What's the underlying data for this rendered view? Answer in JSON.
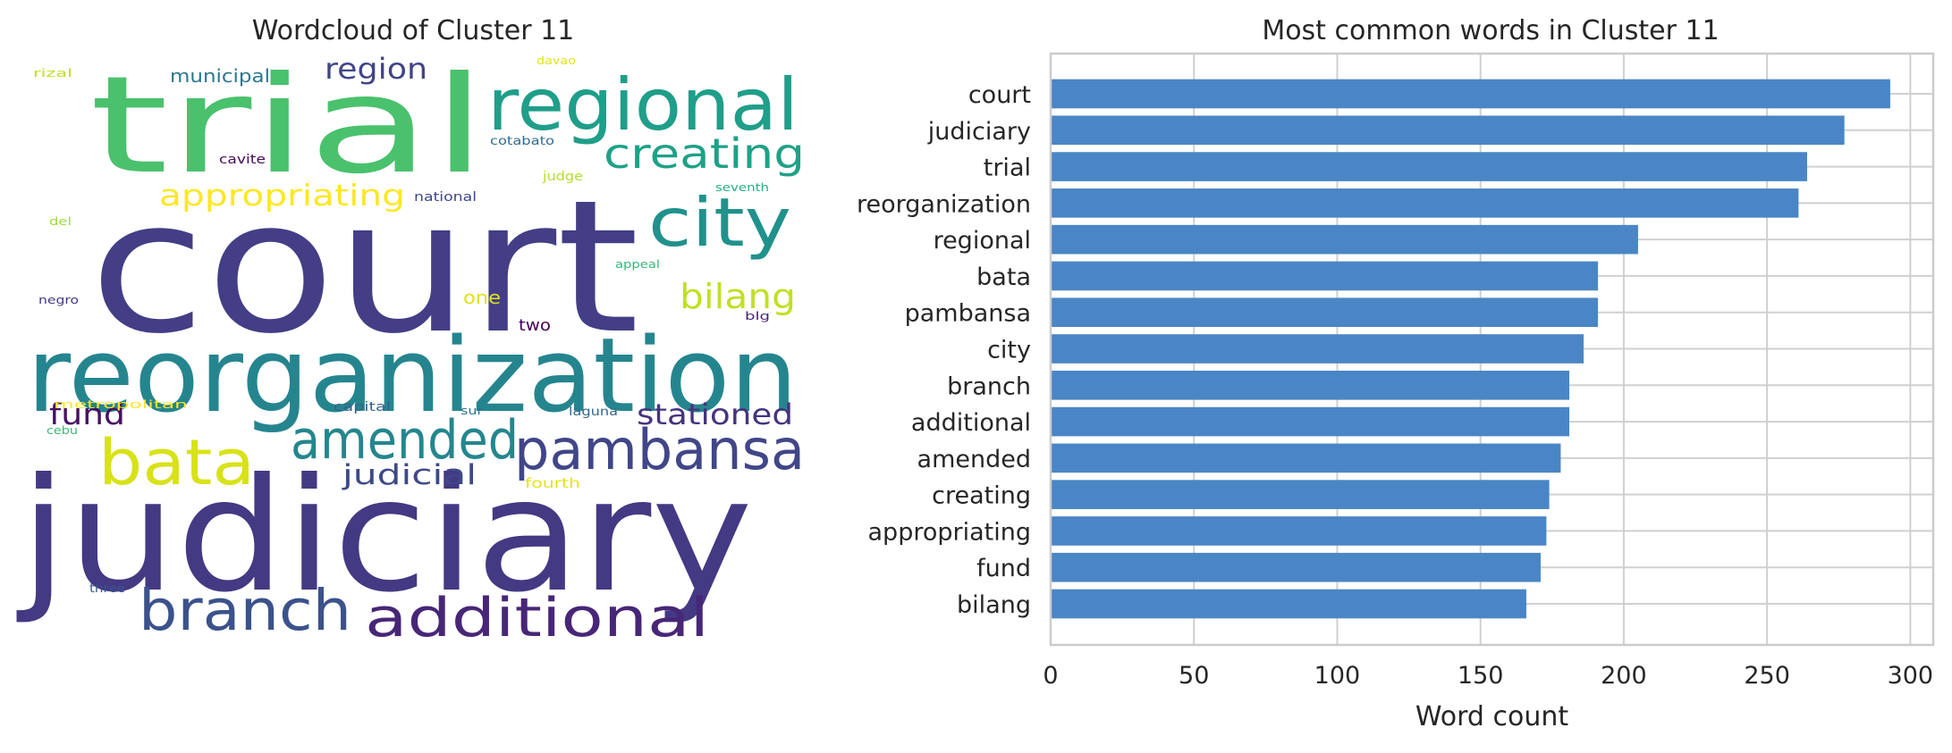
{
  "chart_data": [
    {
      "type": "wordcloud",
      "title": "Wordcloud of Cluster 11",
      "words": [
        {
          "text": "court",
          "color": "#433e85"
        },
        {
          "text": "judiciary",
          "color": "#443983"
        },
        {
          "text": "trial",
          "color": "#4ac16d"
        },
        {
          "text": "reorganization",
          "color": "#25858e"
        },
        {
          "text": "regional",
          "color": "#1f9e89"
        },
        {
          "text": "city",
          "color": "#21918c"
        },
        {
          "text": "pambansa",
          "color": "#404688"
        },
        {
          "text": "amended",
          "color": "#24868e"
        },
        {
          "text": "bata",
          "color": "#d8e219"
        },
        {
          "text": "branch",
          "color": "#3b528b"
        },
        {
          "text": "additional",
          "color": "#482677"
        },
        {
          "text": "creating",
          "color": "#1fa187"
        },
        {
          "text": "bilang",
          "color": "#c2df23"
        },
        {
          "text": "appropriating",
          "color": "#fde725"
        },
        {
          "text": "stationed",
          "color": "#46337e"
        },
        {
          "text": "region",
          "color": "#414487"
        },
        {
          "text": "judicial",
          "color": "#3e4989"
        },
        {
          "text": "fund",
          "color": "#471063"
        },
        {
          "text": "municipal",
          "color": "#2a788e"
        },
        {
          "text": "one",
          "color": "#dfe318"
        },
        {
          "text": "two",
          "color": "#440154"
        },
        {
          "text": "cavite",
          "color": "#46085c"
        },
        {
          "text": "cotabato",
          "color": "#306a8e"
        },
        {
          "text": "judge",
          "color": "#b5de2b"
        },
        {
          "text": "national",
          "color": "#3f4788"
        },
        {
          "text": "seventh",
          "color": "#29af7f"
        },
        {
          "text": "rizal",
          "color": "#bddf26"
        },
        {
          "text": "davao",
          "color": "#e5e419"
        },
        {
          "text": "del",
          "color": "#a0da39"
        },
        {
          "text": "appeal",
          "color": "#35b779"
        },
        {
          "text": "negro",
          "color": "#453781"
        },
        {
          "text": "blg",
          "color": "#481f70"
        },
        {
          "text": "metropolitan",
          "color": "#fde725"
        },
        {
          "text": "capital",
          "color": "#33638d"
        },
        {
          "text": "sur",
          "color": "#2e6f8e"
        },
        {
          "text": "laguna",
          "color": "#31688e"
        },
        {
          "text": "cebu",
          "color": "#3bbb75"
        },
        {
          "text": "fourth",
          "color": "#e2e418"
        },
        {
          "text": "three",
          "color": "#3a548c"
        }
      ]
    },
    {
      "type": "bar",
      "orientation": "horizontal",
      "title": "Most common words in Cluster 11",
      "xlabel": "Word count",
      "ylabel": "",
      "xlim": [
        0,
        308
      ],
      "xticks": [
        0,
        50,
        100,
        150,
        200,
        250,
        300
      ],
      "grid": true,
      "bar_color": "#4a86c5",
      "categories": [
        "court",
        "judiciary",
        "trial",
        "reorganization",
        "regional",
        "bata",
        "pambansa",
        "city",
        "branch",
        "additional",
        "amended",
        "creating",
        "appropriating",
        "fund",
        "bilang"
      ],
      "values": [
        293,
        277,
        264,
        261,
        205,
        191,
        191,
        186,
        181,
        181,
        178,
        174,
        173,
        171,
        166
      ]
    }
  ]
}
